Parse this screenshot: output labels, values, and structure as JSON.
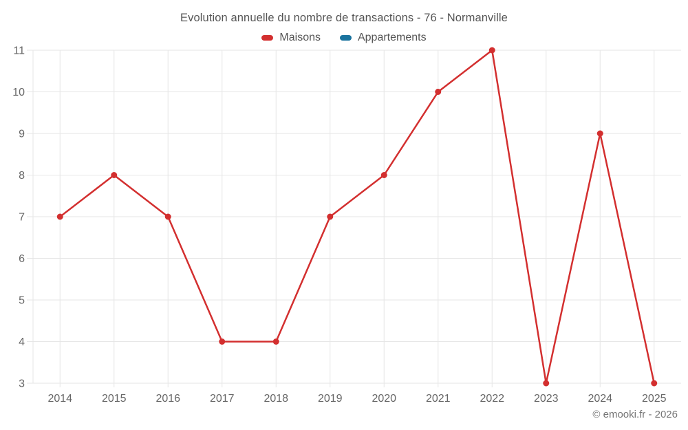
{
  "title": "Evolution annuelle du nombre de transactions - 76 - Normanville",
  "footer": {
    "credit": "© emooki.fr - 2026"
  },
  "colors": {
    "maisons": "#d32f2f",
    "appartements": "#1a739e",
    "grid": "#e6e6e6",
    "axis_text": "#666666",
    "title_text": "#555555"
  },
  "chart_data": {
    "type": "line",
    "title": "Evolution annuelle du nombre de transactions - 76 - Normanville",
    "categories": [
      "2014",
      "2015",
      "2016",
      "2017",
      "2018",
      "2019",
      "2020",
      "2021",
      "2022",
      "2023",
      "2024",
      "2025"
    ],
    "series": [
      {
        "name": "Maisons",
        "color": "#d32f2f",
        "values": [
          7,
          8,
          7,
          4,
          4,
          7,
          8,
          10,
          11,
          3,
          9,
          3
        ]
      },
      {
        "name": "Appartements",
        "color": "#1a739e",
        "values": []
      }
    ],
    "xlabel": "",
    "ylabel": "",
    "ylim": [
      3,
      11
    ],
    "yticks": [
      3,
      4,
      5,
      6,
      7,
      8,
      9,
      10,
      11
    ],
    "grid": true,
    "legend_position": "top",
    "marker": "circle"
  }
}
